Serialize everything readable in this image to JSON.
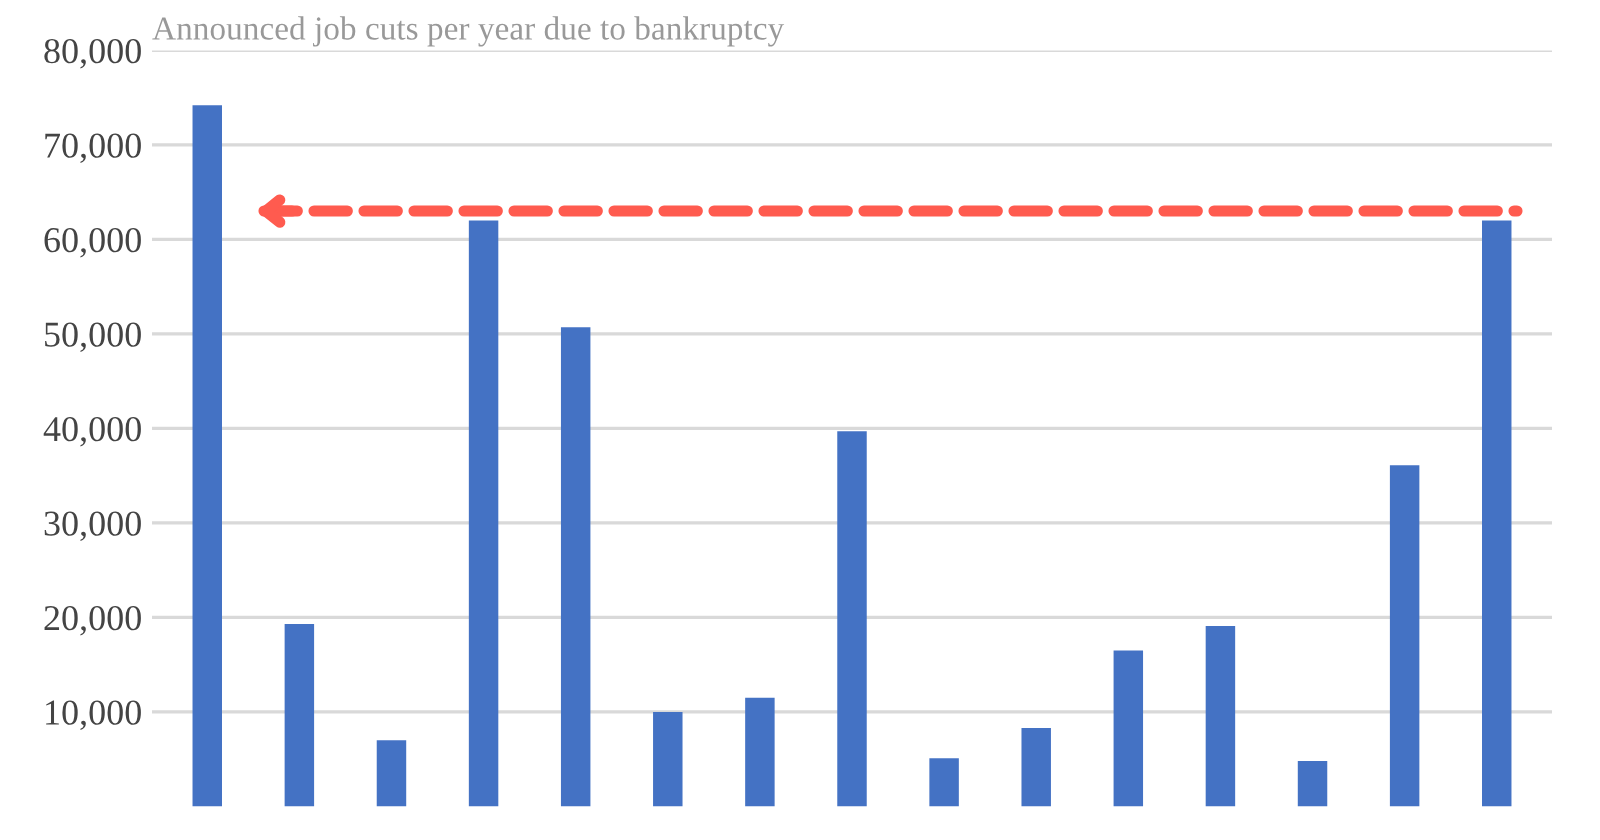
{
  "chart_data": {
    "type": "bar",
    "title": "Announced job cuts per year due to bankruptcy",
    "categories": [
      null,
      null,
      null,
      null,
      null,
      null,
      null,
      null,
      null,
      null,
      null,
      null,
      null,
      null,
      null
    ],
    "values": [
      74200,
      19300,
      7000,
      62000,
      50700,
      10000,
      11500,
      39700,
      5100,
      8300,
      16500,
      19100,
      4800,
      36100,
      62000
    ],
    "color": "#4472c4",
    "ylim": [
      0,
      80000
    ],
    "yticks": [
      {
        "value": 10000,
        "label": "10,000"
      },
      {
        "value": 20000,
        "label": "20,000"
      },
      {
        "value": 30000,
        "label": "30,000"
      },
      {
        "value": 40000,
        "label": "40,000"
      },
      {
        "value": 50000,
        "label": "50,000"
      },
      {
        "value": 60000,
        "label": "60,000"
      },
      {
        "value": 70000,
        "label": "70,000"
      },
      {
        "value": 80000,
        "label": "80,000"
      }
    ],
    "grid": "y",
    "ref_lines": [
      {
        "axis": "y",
        "value": 63000,
        "color": "#ff5b4f",
        "line_style": "dashed"
      }
    ]
  }
}
